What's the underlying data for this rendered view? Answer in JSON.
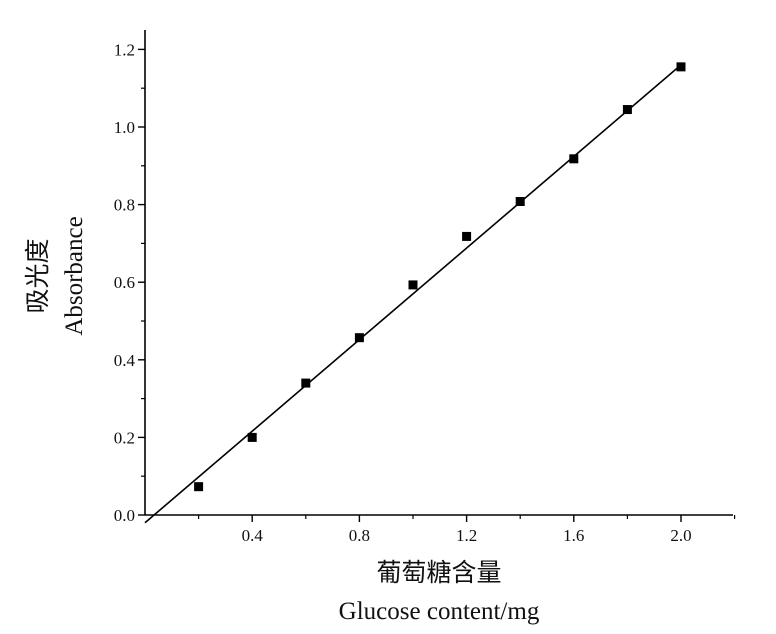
{
  "chart_data": {
    "type": "scatter",
    "xlabel_cn": "葡萄糖含量",
    "xlabel_en": "Glucose content/mg",
    "ylabel_cn": "吸光度",
    "ylabel_en": "Absorbance",
    "xlim": [
      0,
      2.2
    ],
    "ylim": [
      0,
      1.25
    ],
    "x_ticks": [
      0.4,
      0.8,
      1.2,
      1.6,
      2.0
    ],
    "x_tick_labels": [
      "0.4",
      "0.8",
      "1.2",
      "1.6",
      "2.0"
    ],
    "y_ticks": [
      0.0,
      0.2,
      0.4,
      0.6,
      0.8,
      1.0,
      1.2
    ],
    "y_tick_labels": [
      "0.0",
      "0.2",
      "0.4",
      "0.6",
      "0.8",
      "1.0",
      "1.2"
    ],
    "grid": false,
    "legend": "none",
    "series": [
      {
        "x": [
          0.2,
          0.4,
          0.6,
          0.8,
          1.0,
          1.2,
          1.4,
          1.6,
          1.8,
          2.0
        ],
        "y": [
          0.073,
          0.2,
          0.34,
          0.457,
          0.593,
          0.718,
          0.808,
          0.918,
          1.045,
          1.155
        ]
      }
    ],
    "fit_line": {
      "x": [
        0.0,
        2.0
      ],
      "y": [
        -0.02,
        1.16
      ]
    },
    "marker_color": "#000000",
    "line_color": "#000000"
  }
}
